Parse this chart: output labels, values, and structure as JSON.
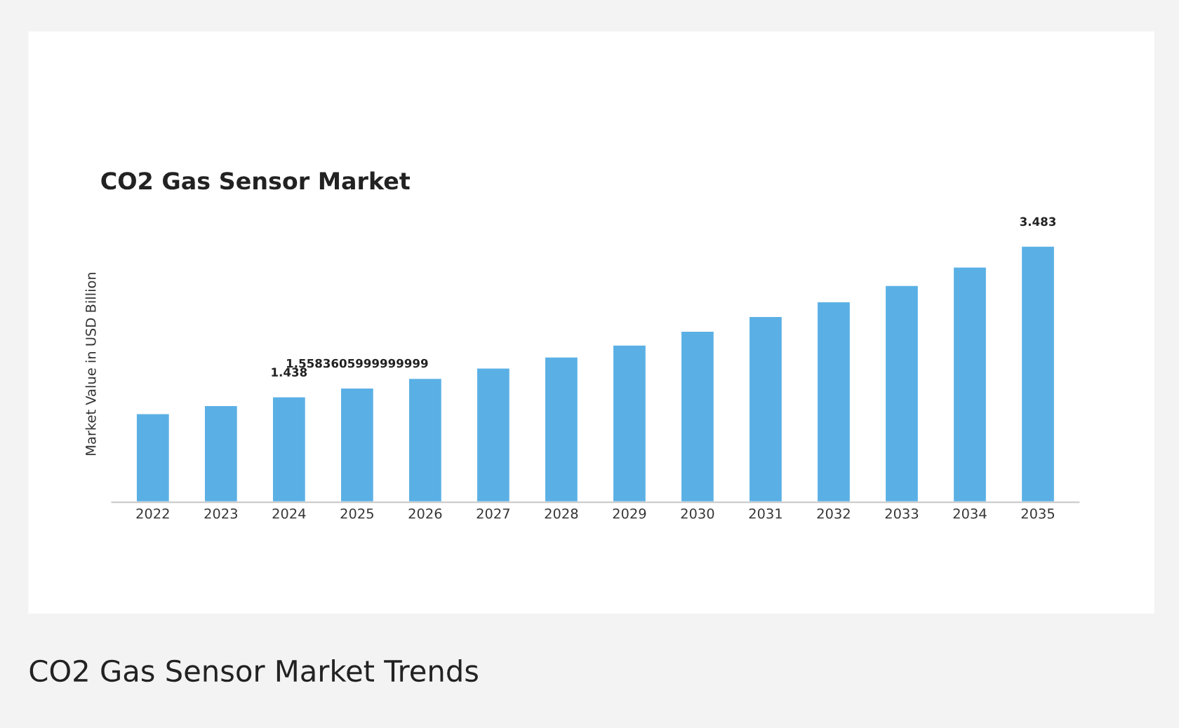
{
  "chart_data": {
    "type": "bar",
    "title": "CO2 Gas Sensor Market",
    "ylabel": "Market Value in USD Billion",
    "categories": [
      "2022",
      "2023",
      "2024",
      "2025",
      "2026",
      "2027",
      "2028",
      "2029",
      "2030",
      "2031",
      "2032",
      "2033",
      "2034",
      "2035"
    ],
    "values": [
      1.21,
      1.32,
      1.438,
      1.5583606,
      1.69,
      1.83,
      1.98,
      2.14,
      2.33,
      2.53,
      2.73,
      2.95,
      3.2,
      3.483
    ],
    "value_labels": [
      null,
      null,
      "1.438",
      "1.5583605999999999",
      null,
      null,
      null,
      null,
      null,
      null,
      null,
      null,
      null,
      "3.483"
    ],
    "color": "#5ab0e5",
    "tick_labels": "x",
    "grid": false,
    "legend": false,
    "annotations": [
      "CO2 Gas Sensor Market Trends"
    ]
  }
}
